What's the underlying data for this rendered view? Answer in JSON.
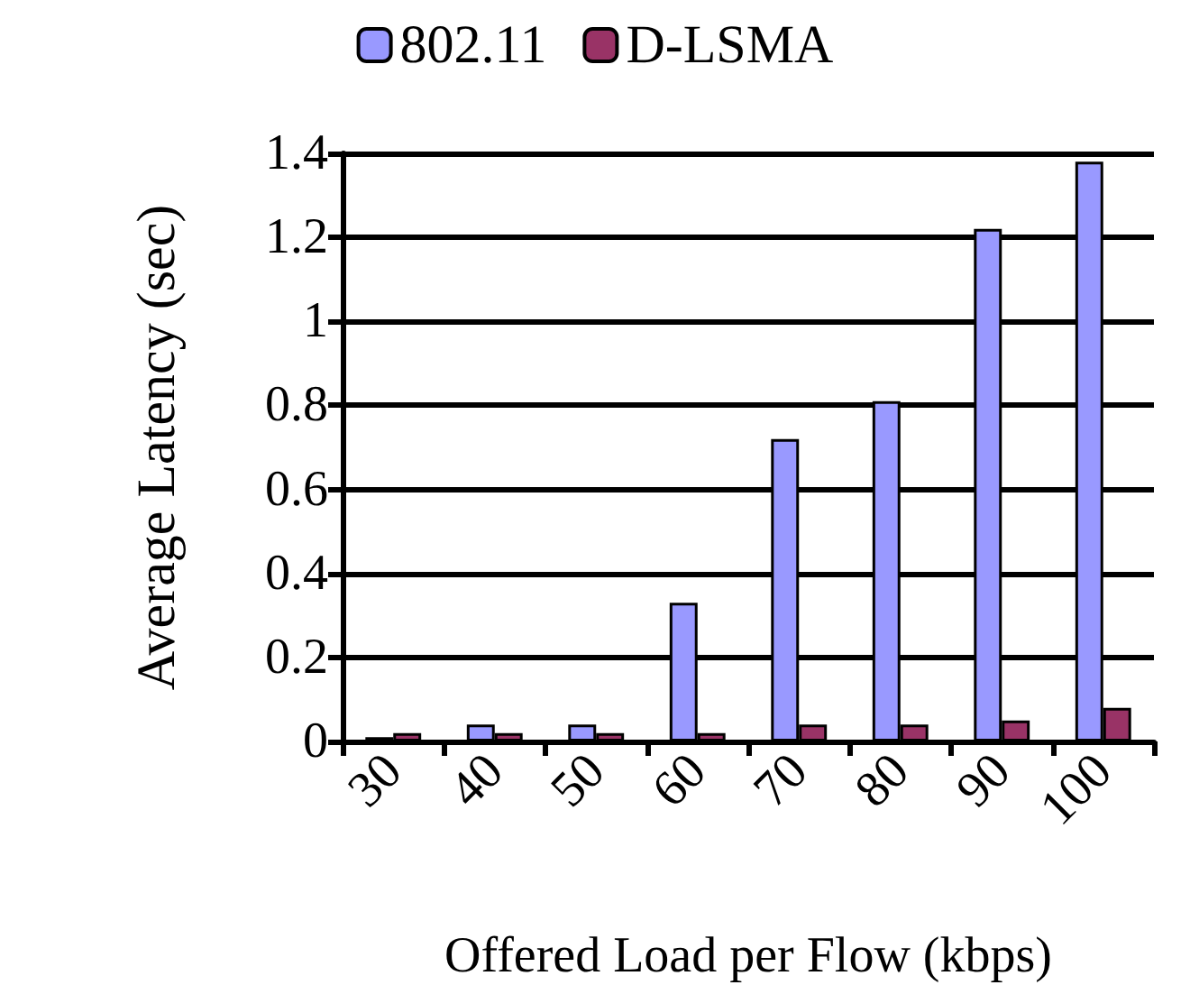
{
  "chart_data": {
    "type": "bar",
    "xlabel": "Offered Load per Flow (kbps)",
    "ylabel": "Average Latency (sec)",
    "categories": [
      "30",
      "40",
      "50",
      "60",
      "70",
      "80",
      "90",
      "100"
    ],
    "series": [
      {
        "name": "802.11",
        "color": "#9999ff",
        "values": [
          0.01,
          0.04,
          0.04,
          0.33,
          0.72,
          0.81,
          1.22,
          1.38
        ]
      },
      {
        "name": "D-LSMA",
        "color": "#993366",
        "values": [
          0.02,
          0.02,
          0.02,
          0.02,
          0.04,
          0.04,
          0.05,
          0.08
        ]
      }
    ],
    "ylim": [
      0,
      1.4
    ],
    "yticks": [
      0,
      0.2,
      0.4,
      0.6,
      0.8,
      1,
      1.2,
      1.4
    ],
    "grid": "y",
    "legend": "top"
  }
}
